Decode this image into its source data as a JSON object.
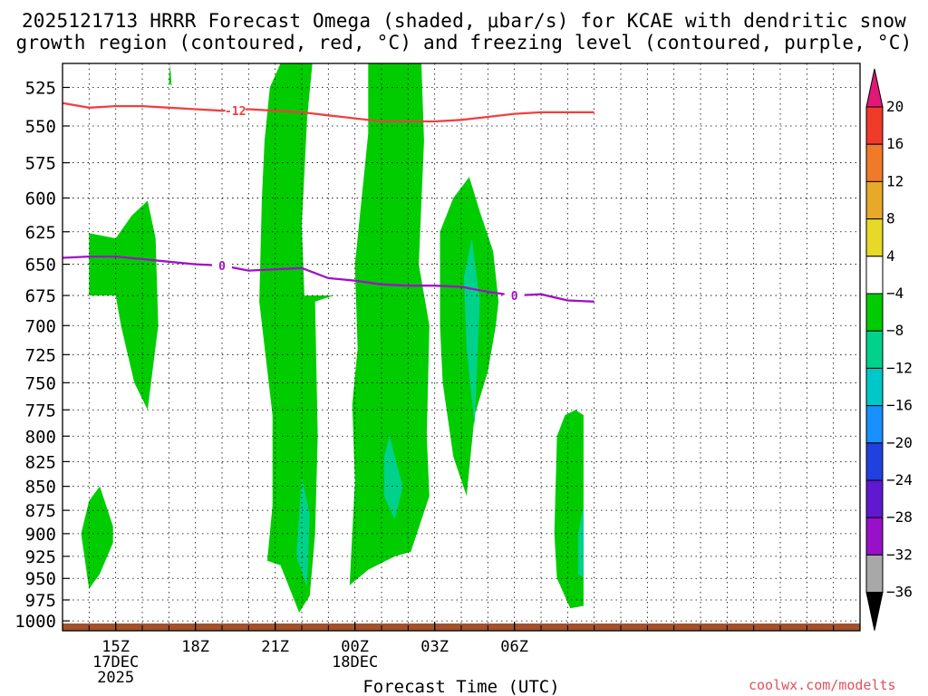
{
  "title_line1": "2025121713 HRRR Forecast Omega (shaded, μbar/s) for KCAE with dendritic snow",
  "title_line2": "growth region (contoured, red, °C) and freezing level (contoured, purple, °C)",
  "credit": "coolwx.com/modelts",
  "chart_data": {
    "type": "contour",
    "xlabel": "Forecast Time (UTC)",
    "x_hours_range": [
      13,
      43
    ],
    "x_ticks": [
      {
        "hour": 15,
        "label": "15Z",
        "sub": [
          "17DEC",
          "2025"
        ]
      },
      {
        "hour": 18,
        "label": "18Z",
        "sub": []
      },
      {
        "hour": 21,
        "label": "21Z",
        "sub": []
      },
      {
        "hour": 24,
        "label": "00Z",
        "sub": [
          "18DEC"
        ]
      },
      {
        "hour": 27,
        "label": "03Z",
        "sub": []
      },
      {
        "hour": 30,
        "label": "06Z",
        "sub": []
      }
    ],
    "y_label": "",
    "y_ticks": [
      525,
      550,
      575,
      600,
      625,
      650,
      675,
      700,
      725,
      750,
      775,
      800,
      825,
      850,
      875,
      900,
      925,
      950,
      975,
      1000
    ],
    "y_range_hpa": [
      510,
      1012
    ],
    "grid": true,
    "colorbar": {
      "levels": [
        20,
        16,
        12,
        8,
        4,
        -4,
        -8,
        -12,
        -16,
        -20,
        -24,
        -28,
        -32,
        -36
      ],
      "colors": [
        "#e01878",
        "#f03a2a",
        "#f07a28",
        "#e8a828",
        "#e8d828",
        "#ffffff",
        "#00cc00",
        "#00d28c",
        "#00c8c8",
        "#1890ff",
        "#2040e0",
        "#6018d0",
        "#9810c8",
        "#a8a8a8",
        "#000000"
      ]
    },
    "omega_regions": [
      {
        "level": -4,
        "color": "#00cc00",
        "points": [
          [
            14.0,
            626
          ],
          [
            15.0,
            630
          ],
          [
            15.6,
            613
          ],
          [
            16.2,
            602
          ],
          [
            16.5,
            630
          ],
          [
            16.6,
            700
          ],
          [
            16.2,
            775
          ],
          [
            15.7,
            750
          ],
          [
            15.2,
            700
          ],
          [
            15.0,
            675
          ],
          [
            14.0,
            675
          ]
        ]
      },
      {
        "level": -4,
        "color": "#00cc00",
        "points": [
          [
            14.0,
            865
          ],
          [
            14.4,
            850
          ],
          [
            14.9,
            892
          ],
          [
            14.9,
            910
          ],
          [
            14.4,
            945
          ],
          [
            14.0,
            962
          ],
          [
            13.7,
            900
          ]
        ]
      },
      {
        "level": -4,
        "color": "#00cc00",
        "points": [
          [
            17.0,
            522
          ],
          [
            17.05,
            510
          ],
          [
            17.1,
            524
          ]
        ]
      },
      {
        "level": -4,
        "color": "#00cc00",
        "points": [
          [
            20.8,
            525
          ],
          [
            21.2,
            510
          ],
          [
            22.4,
            510
          ],
          [
            22.2,
            545
          ],
          [
            22.0,
            620
          ],
          [
            22.1,
            675
          ],
          [
            23.2,
            675
          ],
          [
            22.5,
            680
          ],
          [
            22.6,
            800
          ],
          [
            22.5,
            900
          ],
          [
            22.3,
            970
          ],
          [
            21.9,
            990
          ],
          [
            21.2,
            935
          ],
          [
            20.7,
            930
          ],
          [
            20.9,
            870
          ],
          [
            20.9,
            780
          ],
          [
            20.4,
            680
          ],
          [
            20.5,
            600
          ],
          [
            20.6,
            560
          ]
        ]
      },
      {
        "level": -8,
        "color": "#00d28c",
        "points": [
          [
            22.0,
            840
          ],
          [
            22.3,
            880
          ],
          [
            22.2,
            960
          ],
          [
            21.8,
            925
          ]
        ]
      },
      {
        "level": -4,
        "color": "#00cc00",
        "points": [
          [
            24.5,
            555
          ],
          [
            24.5,
            510
          ],
          [
            26.5,
            510
          ],
          [
            26.6,
            560
          ],
          [
            26.4,
            650
          ],
          [
            26.8,
            700
          ],
          [
            26.7,
            800
          ],
          [
            26.8,
            860
          ],
          [
            26.1,
            920
          ],
          [
            25.5,
            925
          ],
          [
            24.5,
            940
          ],
          [
            23.8,
            958
          ],
          [
            23.9,
            900
          ],
          [
            24.0,
            845
          ],
          [
            23.9,
            770
          ],
          [
            24.1,
            720
          ],
          [
            24.0,
            650
          ]
        ]
      },
      {
        "level": -8,
        "color": "#00d28c",
        "points": [
          [
            25.3,
            800
          ],
          [
            25.7,
            840
          ],
          [
            25.8,
            850
          ],
          [
            25.5,
            885
          ],
          [
            25.1,
            860
          ],
          [
            25.1,
            820
          ]
        ]
      },
      {
        "level": -4,
        "color": "#00cc00",
        "points": [
          [
            27.2,
            625
          ],
          [
            27.7,
            600
          ],
          [
            28.3,
            585
          ],
          [
            28.7,
            610
          ],
          [
            29.2,
            640
          ],
          [
            29.4,
            680
          ],
          [
            29.3,
            700
          ],
          [
            29.0,
            740
          ],
          [
            28.5,
            780
          ],
          [
            28.2,
            860
          ],
          [
            27.7,
            820
          ],
          [
            27.3,
            750
          ],
          [
            27.2,
            700
          ]
        ]
      },
      {
        "level": -8,
        "color": "#00d28c",
        "points": [
          [
            28.4,
            630
          ],
          [
            28.7,
            680
          ],
          [
            28.5,
            790
          ],
          [
            28.2,
            720
          ],
          [
            28.1,
            660
          ]
        ]
      },
      {
        "level": -4,
        "color": "#00cc00",
        "points": [
          [
            32.6,
            780
          ],
          [
            32.6,
            982
          ],
          [
            32.1,
            985
          ],
          [
            31.6,
            950
          ],
          [
            31.5,
            900
          ],
          [
            31.6,
            800
          ],
          [
            31.9,
            780
          ],
          [
            32.3,
            775
          ]
        ]
      },
      {
        "level": -8,
        "color": "#00d28c",
        "points": [
          [
            32.6,
            870
          ],
          [
            32.4,
            900
          ],
          [
            32.4,
            945
          ],
          [
            32.6,
            950
          ]
        ]
      }
    ],
    "series": [
      {
        "name": "-12",
        "type": "contour",
        "color": "#f04040",
        "x": [
          13.0,
          14.0,
          15.0,
          16.0,
          17.0,
          18.0,
          19.0,
          20.0,
          21.0,
          22.0,
          23.0,
          24.0,
          25.0,
          26.0,
          27.0,
          28.0,
          29.0,
          30.0,
          31.0,
          32.0,
          33.0
        ],
        "y": [
          535,
          538,
          537,
          537,
          538,
          539,
          540,
          539,
          540,
          541,
          543,
          545,
          547,
          547,
          547,
          546,
          544,
          542,
          541,
          541,
          541
        ]
      },
      {
        "name": "0",
        "type": "contour",
        "color": "#a010c8",
        "x": [
          13.0,
          14.0,
          15.0,
          16.0,
          17.0,
          18.0,
          19.0,
          20.0,
          21.0,
          22.0,
          23.0,
          24.0,
          25.0,
          26.0,
          27.0,
          28.0,
          29.0,
          30.0,
          31.0,
          32.0,
          33.0
        ],
        "y": [
          645,
          644,
          644,
          646,
          648,
          650,
          651,
          655,
          654,
          653,
          661,
          663,
          666,
          667,
          667,
          668,
          672,
          675,
          674,
          679,
          680
        ]
      }
    ],
    "ground": {
      "color": "#a0522d"
    }
  }
}
